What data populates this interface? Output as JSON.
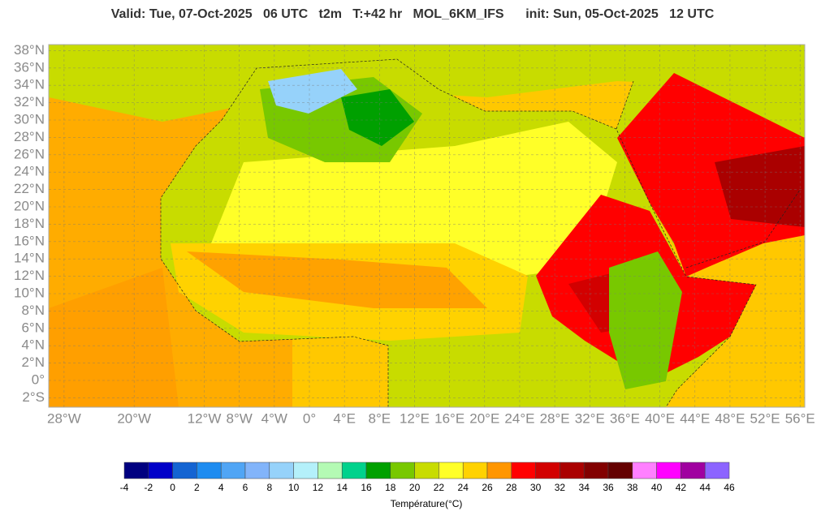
{
  "header": {
    "title": "Valid: Tue, 07-Oct-2025   06 UTC   t2m   T:+42 hr   MOL_6KM_IFS      init: Sun, 05-Oct-2025   12 UTC"
  },
  "map": {
    "lat_ticks": [
      {
        "value": 38,
        "label": "38°N"
      },
      {
        "value": 36,
        "label": "36°N"
      },
      {
        "value": 34,
        "label": "34°N"
      },
      {
        "value": 32,
        "label": "32°N"
      },
      {
        "value": 30,
        "label": "30°N"
      },
      {
        "value": 28,
        "label": "28°N"
      },
      {
        "value": 26,
        "label": "26°N"
      },
      {
        "value": 24,
        "label": "24°N"
      },
      {
        "value": 22,
        "label": "22°N"
      },
      {
        "value": 20,
        "label": "20°N"
      },
      {
        "value": 18,
        "label": "18°N"
      },
      {
        "value": 16,
        "label": "16°N"
      },
      {
        "value": 14,
        "label": "14°N"
      },
      {
        "value": 12,
        "label": "12°N"
      },
      {
        "value": 10,
        "label": "10°N"
      },
      {
        "value": 8,
        "label": "8°N"
      },
      {
        "value": 6,
        "label": "6°N"
      },
      {
        "value": 4,
        "label": "4°N"
      },
      {
        "value": 2,
        "label": "2°N"
      },
      {
        "value": 0,
        "label": "0°"
      },
      {
        "value": -2,
        "label": "2°S"
      }
    ],
    "lon_ticks": [
      {
        "value": -28,
        "label": "28°W"
      },
      {
        "value": -20,
        "label": "20°W"
      },
      {
        "value": -12,
        "label": "12°W"
      },
      {
        "value": -8,
        "label": "8°W"
      },
      {
        "value": -4,
        "label": "4°W"
      },
      {
        "value": 0,
        "label": "0°"
      },
      {
        "value": 4,
        "label": "4°E"
      },
      {
        "value": 8,
        "label": "8°E"
      },
      {
        "value": 12,
        "label": "12°E"
      },
      {
        "value": 16,
        "label": "16°E"
      },
      {
        "value": 20,
        "label": "20°E"
      },
      {
        "value": 24,
        "label": "24°E"
      },
      {
        "value": 28,
        "label": "28°E"
      },
      {
        "value": 32,
        "label": "32°E"
      },
      {
        "value": 36,
        "label": "36°E"
      },
      {
        "value": 40,
        "label": "40°E"
      },
      {
        "value": 44,
        "label": "44°E"
      },
      {
        "value": 48,
        "label": "48°E"
      },
      {
        "value": 52,
        "label": "52°E"
      },
      {
        "value": 56,
        "label": "56°E"
      }
    ]
  },
  "colorbar": {
    "title": "Température(°C)",
    "ticks": [
      -4,
      -2,
      0,
      2,
      4,
      6,
      8,
      10,
      12,
      14,
      16,
      18,
      20,
      22,
      24,
      26,
      28,
      30,
      32,
      34,
      36,
      38,
      40,
      42,
      44,
      46
    ],
    "colors": [
      "#000080",
      "#0000c8",
      "#1464d2",
      "#1e8cf0",
      "#50a5f5",
      "#82b4fa",
      "#96d2fa",
      "#b4f0fa",
      "#b4fab4",
      "#00d28c",
      "#00a000",
      "#78c800",
      "#c8dc00",
      "#ffff28",
      "#ffd200",
      "#ff9600",
      "#ff0000",
      "#d20000",
      "#aa0000",
      "#820000",
      "#640000",
      "#ff80ff",
      "#ff00ff",
      "#a000a0",
      "#8c64ff"
    ]
  }
}
